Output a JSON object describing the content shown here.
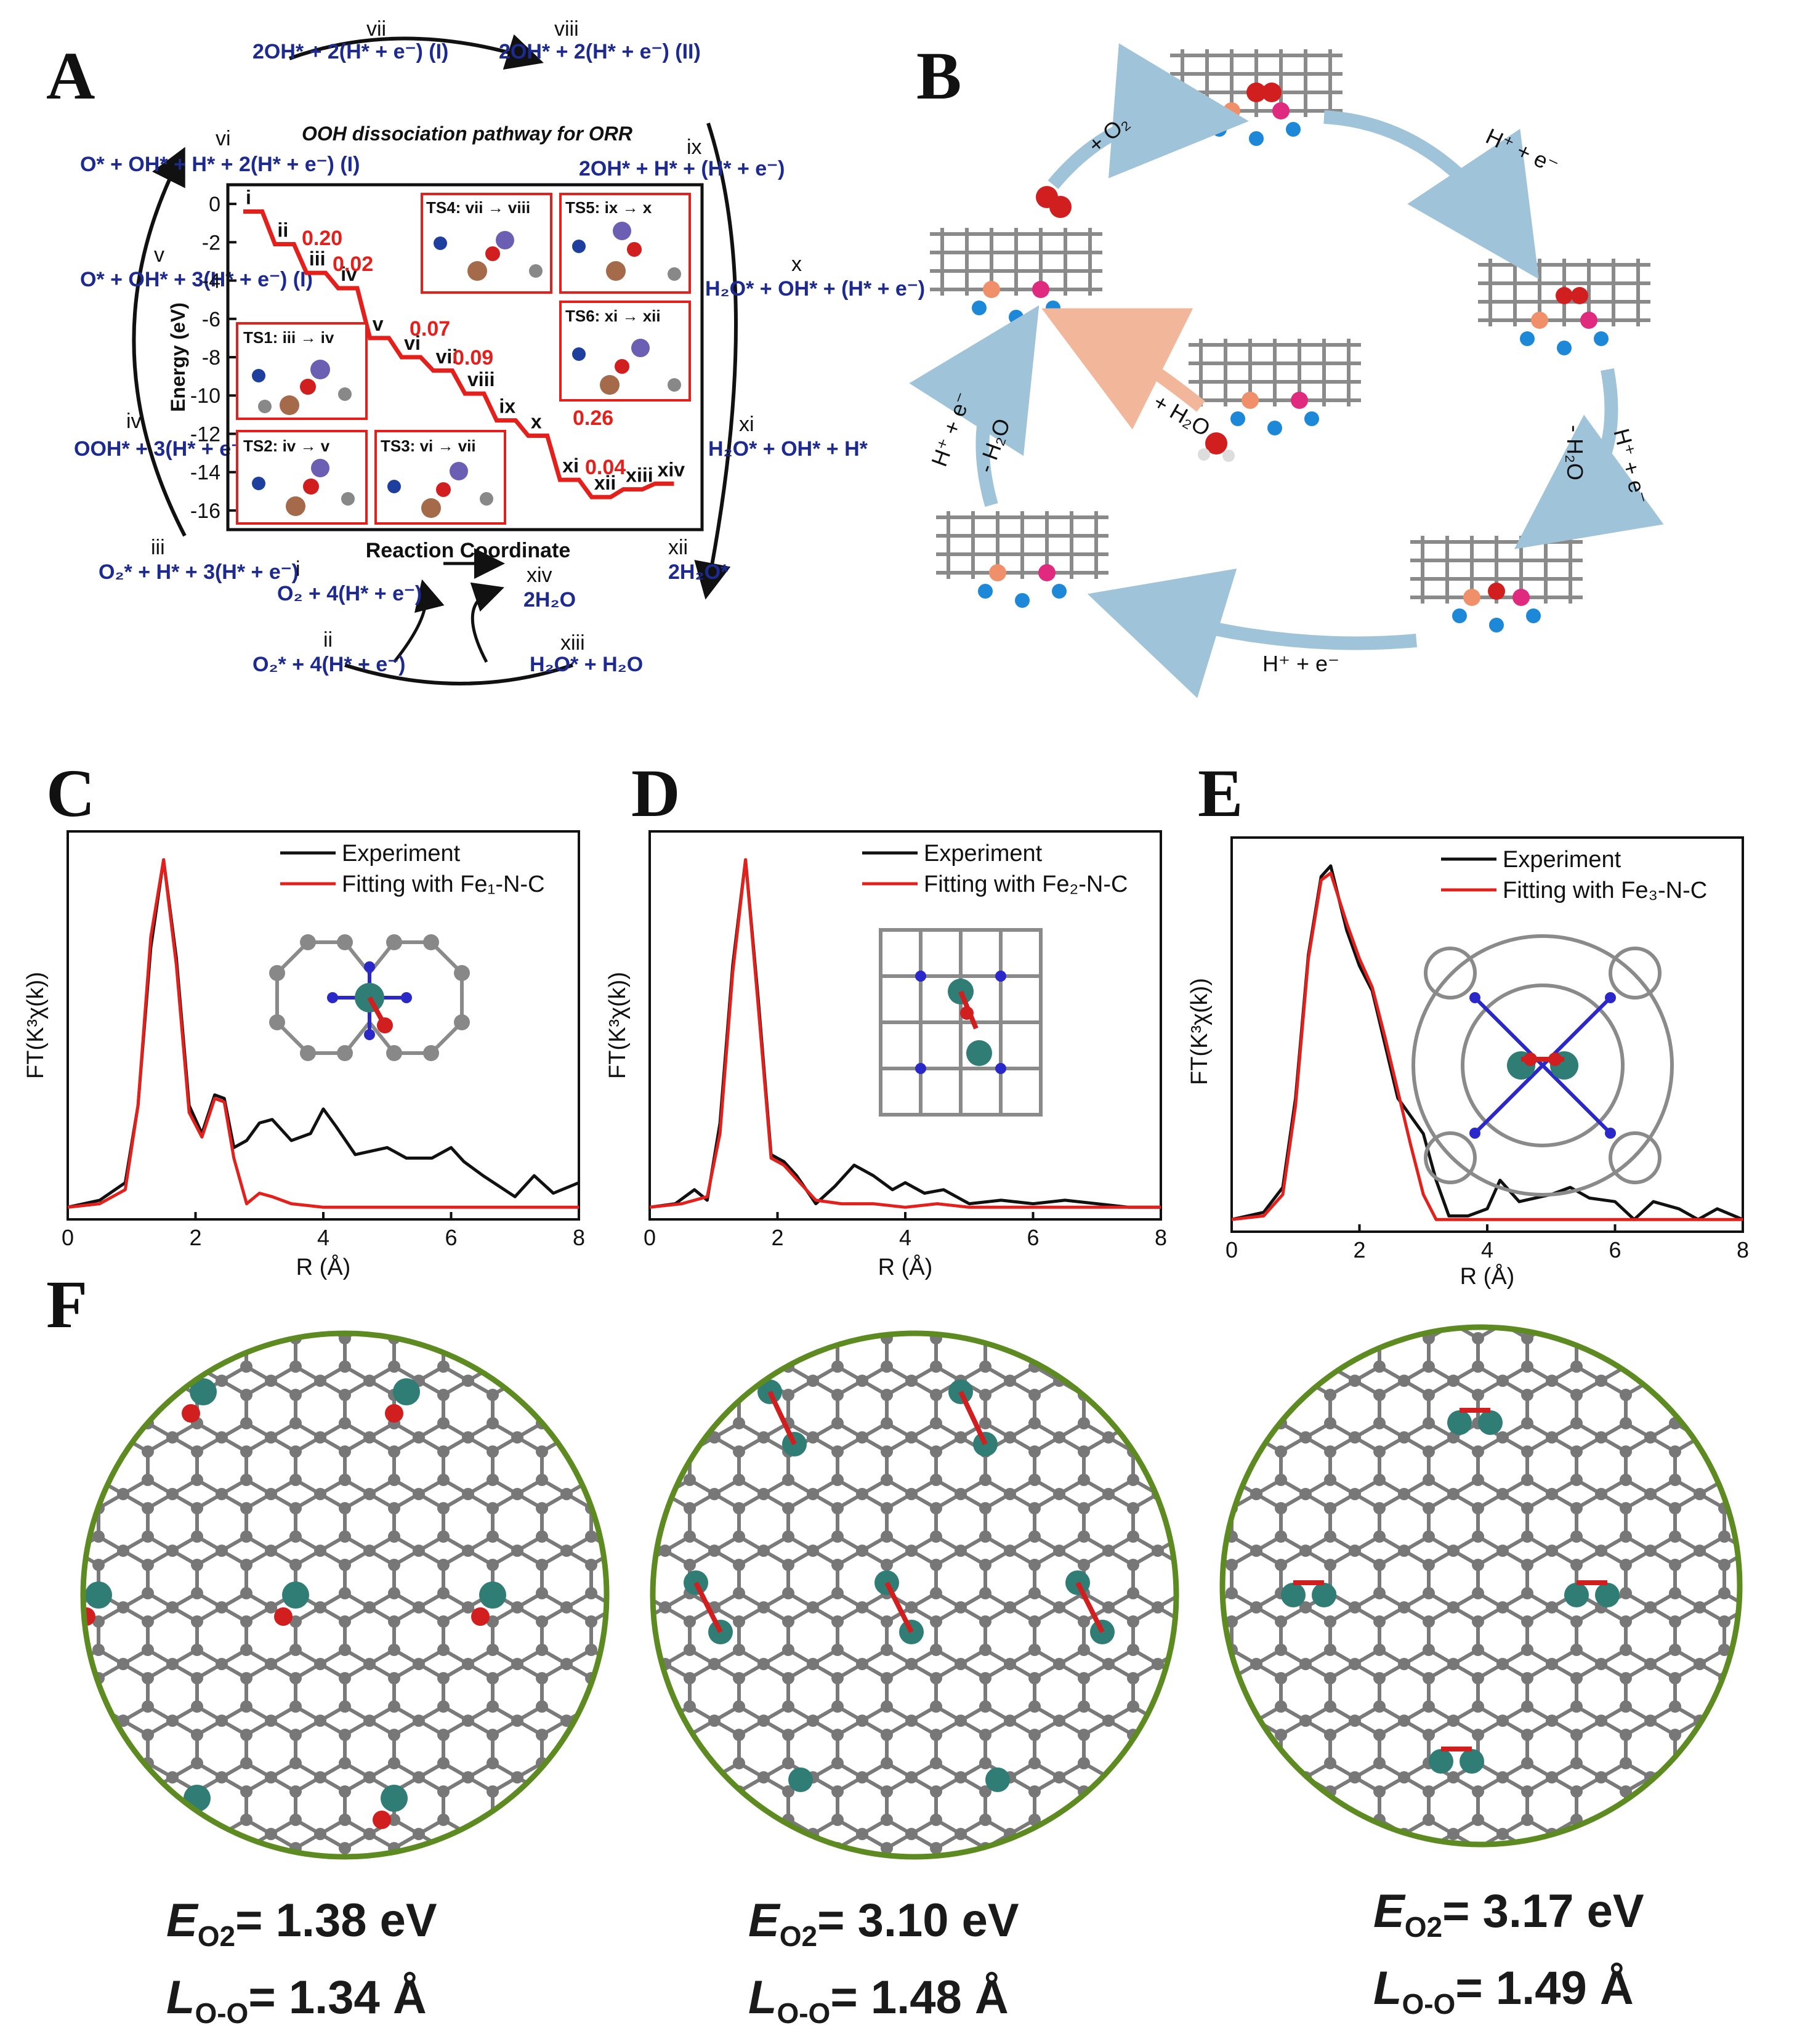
{
  "panels": {
    "A": "A",
    "B": "B",
    "C": "C",
    "D": "D",
    "E": "E",
    "F": "F"
  },
  "panelA": {
    "title": "OOH dissociation pathway for ORR",
    "ylabel": "Energy (eV)",
    "xlabel": "Reaction Coordinate",
    "yticks": [
      "0",
      "-2",
      "-4",
      "-6",
      "-8",
      "-10",
      "-12",
      "-14",
      "-16"
    ],
    "cycle_states": [
      {
        "id": "vii",
        "text": "2OH* + 2(H* + e⁻) (I)"
      },
      {
        "id": "viii",
        "text": "2OH* + 2(H* + e⁻) (II)"
      },
      {
        "id": "vi",
        "text": "O* + OH* + H* + 2(H* + e⁻) (I)"
      },
      {
        "id": "ix",
        "text": "2OH* + H* + (H* + e⁻)"
      },
      {
        "id": "v",
        "text": "O* + OH* + 3(H* + e⁻) (I)"
      },
      {
        "id": "x",
        "text": "H₂O* + OH* + (H* + e⁻)"
      },
      {
        "id": "iv",
        "text": "OOH* + 3(H* + e⁻)"
      },
      {
        "id": "xi",
        "text": "H₂O* + OH* + H*"
      },
      {
        "id": "iii",
        "text": "O₂* + H* + 3(H* + e⁻)"
      },
      {
        "id": "xii",
        "text": "2H₂O*"
      },
      {
        "id": "i",
        "text": "O₂ + 4(H* + e⁻)"
      },
      {
        "id": "xiv",
        "text": "2H₂O"
      },
      {
        "id": "ii",
        "text": "O₂* + 4(H* + e⁻)"
      },
      {
        "id": "xiii",
        "text": "H₂O* + H₂O"
      }
    ],
    "step_labels": [
      "i",
      "ii",
      "iii",
      "iv",
      "v",
      "vi",
      "vii",
      "viii",
      "ix",
      "x",
      "xi",
      "xii",
      "xiii",
      "xiv"
    ],
    "barriers": [
      "0.20",
      "0.02",
      "0.07",
      "0.09",
      "0.26",
      "0.04"
    ],
    "ts_labels": [
      "TS1: iii → iv",
      "TS2: iv → v",
      "TS3: vi → vii",
      "TS4: vii → viii",
      "TS5: ix → x",
      "TS6: xi → xii"
    ],
    "energy_profile": [
      {
        "state": "i",
        "energy": -0.4
      },
      {
        "state": "ii",
        "energy": -2.1
      },
      {
        "state": "iii",
        "energy": -3.6
      },
      {
        "state": "iv",
        "energy": -4.4
      },
      {
        "state": "v",
        "energy": -7.0
      },
      {
        "state": "vi",
        "energy": -8.0
      },
      {
        "state": "vii",
        "energy": -8.7
      },
      {
        "state": "viii",
        "energy": -9.9
      },
      {
        "state": "ix",
        "energy": -11.3
      },
      {
        "state": "x",
        "energy": -12.1
      },
      {
        "state": "xi",
        "energy": -14.4
      },
      {
        "state": "xii",
        "energy": -15.3
      },
      {
        "state": "xiii",
        "energy": -14.9
      },
      {
        "state": "xiv",
        "energy": -14.6
      }
    ]
  },
  "panelB": {
    "labels": [
      "+ O₂",
      "H⁺ + e⁻",
      "H⁺ + e⁻",
      "- H₂O",
      "H⁺ + e⁻",
      "H⁺ + e⁻",
      "- H₂O",
      "+ H₂O"
    ]
  },
  "exafs": {
    "xlabel": "R (Å)",
    "ylabel": "FT(K³χ(k))",
    "xticks": [
      "0",
      "2",
      "4",
      "6",
      "8"
    ],
    "legend_experiment": "Experiment",
    "C": {
      "fit_label": "Fitting with Fe₁-N-C"
    },
    "D": {
      "fit_label": "Fitting with Fe₂-N-C"
    },
    "E": {
      "fit_label": "Fitting with Fe₃-N-C"
    }
  },
  "colors": {
    "blue_text": "#1d2a8f",
    "red_text": "#e3201b",
    "experiment": "#111111",
    "fit": "#e3201b",
    "fe": "#2f7d74",
    "n": "#2a28c8",
    "c": "#8b8b8b",
    "o": "#d11f1f",
    "circle": "#5e8a22"
  },
  "chart_data": [
    {
      "type": "line",
      "panel": "C",
      "xlabel": "R (Å)",
      "ylabel": "FT(K³χ(k))",
      "xlim": [
        0,
        8
      ],
      "series": [
        {
          "name": "Experiment",
          "x": [
            0,
            0.5,
            0.9,
            1.1,
            1.3,
            1.5,
            1.7,
            1.9,
            2.1,
            2.3,
            2.45,
            2.6,
            2.8,
            3.0,
            3.2,
            3.5,
            3.8,
            4.0,
            4.2,
            4.5,
            5.0,
            5.3,
            5.7,
            6.0,
            6.2,
            6.5,
            7.0,
            7.3,
            7.6,
            8.0
          ],
          "y": [
            0.01,
            0.03,
            0.08,
            0.3,
            0.75,
            1.0,
            0.72,
            0.3,
            0.22,
            0.33,
            0.32,
            0.18,
            0.2,
            0.25,
            0.26,
            0.2,
            0.22,
            0.29,
            0.24,
            0.16,
            0.18,
            0.15,
            0.15,
            0.18,
            0.14,
            0.1,
            0.04,
            0.1,
            0.05,
            0.08
          ]
        },
        {
          "name": "Fitting with Fe₁-N-C",
          "x": [
            0,
            0.5,
            0.9,
            1.1,
            1.3,
            1.5,
            1.7,
            1.9,
            2.1,
            2.3,
            2.45,
            2.6,
            2.8,
            3.0,
            3.2,
            3.5,
            4.0,
            5.0,
            6.0,
            7.0,
            8.0
          ],
          "y": [
            0.01,
            0.02,
            0.06,
            0.3,
            0.78,
            1.0,
            0.7,
            0.28,
            0.21,
            0.32,
            0.31,
            0.15,
            0.02,
            0.05,
            0.04,
            0.02,
            0.01,
            0.01,
            0.01,
            0.01,
            0.01
          ]
        }
      ]
    },
    {
      "type": "line",
      "panel": "D",
      "xlabel": "R (Å)",
      "ylabel": "FT(K³χ(k))",
      "xlim": [
        0,
        8
      ],
      "series": [
        {
          "name": "Experiment",
          "x": [
            0,
            0.4,
            0.7,
            0.9,
            1.1,
            1.3,
            1.5,
            1.7,
            1.9,
            2.1,
            2.3,
            2.6,
            2.9,
            3.2,
            3.5,
            3.8,
            4.0,
            4.3,
            4.6,
            5.0,
            5.5,
            6.0,
            6.5,
            7.0,
            7.5,
            8.0
          ],
          "y": [
            0.01,
            0.02,
            0.06,
            0.03,
            0.25,
            0.7,
            1.0,
            0.6,
            0.16,
            0.14,
            0.1,
            0.02,
            0.07,
            0.13,
            0.1,
            0.06,
            0.08,
            0.05,
            0.06,
            0.02,
            0.03,
            0.02,
            0.03,
            0.02,
            0.01,
            0.01
          ]
        },
        {
          "name": "Fitting with Fe₂-N-C",
          "x": [
            0,
            0.5,
            0.9,
            1.1,
            1.3,
            1.5,
            1.7,
            1.9,
            2.1,
            2.3,
            2.6,
            3.0,
            3.5,
            4.0,
            4.5,
            5.0,
            6.0,
            7.0,
            8.0
          ],
          "y": [
            0.01,
            0.02,
            0.04,
            0.22,
            0.68,
            1.0,
            0.58,
            0.15,
            0.13,
            0.09,
            0.03,
            0.02,
            0.02,
            0.01,
            0.02,
            0.01,
            0.01,
            0.01,
            0.01
          ]
        }
      ]
    },
    {
      "type": "line",
      "panel": "E",
      "xlabel": "R (Å)",
      "ylabel": "FT(K³χ(k))",
      "xlim": [
        0,
        8
      ],
      "series": [
        {
          "name": "Experiment",
          "x": [
            0,
            0.5,
            0.8,
            1.0,
            1.2,
            1.4,
            1.55,
            1.8,
            2.0,
            2.2,
            2.4,
            2.6,
            2.8,
            3.0,
            3.2,
            3.4,
            3.7,
            4.0,
            4.2,
            4.5,
            5.0,
            5.3,
            5.6,
            6.0,
            6.3,
            6.6,
            7.0,
            7.3,
            7.6,
            8.0
          ],
          "y": [
            0.01,
            0.03,
            0.1,
            0.35,
            0.75,
            0.97,
            1.0,
            0.82,
            0.72,
            0.65,
            0.5,
            0.35,
            0.3,
            0.25,
            0.12,
            0.02,
            0.02,
            0.04,
            0.12,
            0.06,
            0.08,
            0.1,
            0.07,
            0.06,
            0.01,
            0.06,
            0.04,
            0.01,
            0.04,
            0.01
          ]
        },
        {
          "name": "Fitting with Fe₃-N-C",
          "x": [
            0,
            0.5,
            0.8,
            1.0,
            1.2,
            1.4,
            1.55,
            1.8,
            2.0,
            2.2,
            2.4,
            2.6,
            2.8,
            3.0,
            3.2,
            3.4,
            4.0,
            5.0,
            6.0,
            7.0,
            8.0
          ],
          "y": [
            0.01,
            0.02,
            0.08,
            0.33,
            0.74,
            0.96,
            0.98,
            0.84,
            0.74,
            0.66,
            0.52,
            0.37,
            0.22,
            0.08,
            0.01,
            0.01,
            0.01,
            0.01,
            0.01,
            0.01,
            0.01
          ]
        }
      ]
    }
  ],
  "panelF": [
    {
      "e_symbol": "E",
      "e_sub": "O2",
      "e_value": "= 1.38 eV",
      "l_symbol": "L",
      "l_sub": "O-O",
      "l_value": "= 1.34 Å"
    },
    {
      "e_symbol": "E",
      "e_sub": "O2",
      "e_value": "= 3.10 eV",
      "l_symbol": "L",
      "l_sub": "O-O",
      "l_value": "= 1.48 Å"
    },
    {
      "e_symbol": "E",
      "e_sub": "O2",
      "e_value": "= 3.17 eV",
      "l_symbol": "L",
      "l_sub": "O-O",
      "l_value": "= 1.49 Å"
    }
  ]
}
